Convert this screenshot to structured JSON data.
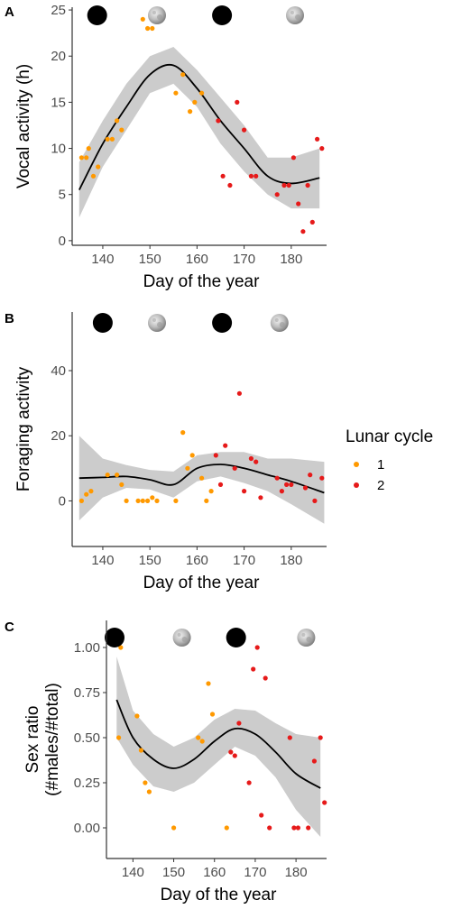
{
  "colors": {
    "cycle1": "#ff9900",
    "cycle2": "#e61a1a",
    "ribbon": "#cccccc",
    "fit": "#000000",
    "axis": "#333333"
  },
  "legend": {
    "title": "Lunar cycle",
    "items": [
      {
        "label": "1",
        "color": "#ff9900"
      },
      {
        "label": "2",
        "color": "#e61a1a"
      }
    ]
  },
  "chart_data": [
    {
      "panel": "A",
      "type": "scatter",
      "xlabel": "Day of the year",
      "ylabel": "Vocal activity (h)",
      "xlim": [
        133.5,
        187.5
      ],
      "ylim": [
        -0.5,
        25.3
      ],
      "xticks": [
        140,
        150,
        160,
        170,
        180
      ],
      "yticks": [
        0,
        5,
        10,
        15,
        20,
        25
      ],
      "moons": [
        {
          "x": 138.8,
          "phase": "new"
        },
        {
          "x": 151.5,
          "phase": "full"
        },
        {
          "x": 165.3,
          "phase": "new"
        },
        {
          "x": 180.8,
          "phase": "full"
        }
      ],
      "series": [
        {
          "name": "1",
          "points": [
            [
              135.5,
              9
            ],
            [
              136.5,
              9
            ],
            [
              137,
              10
            ],
            [
              138,
              7
            ],
            [
              139,
              8
            ],
            [
              141,
              11
            ],
            [
              142,
              11
            ],
            [
              143,
              13
            ],
            [
              144,
              12
            ],
            [
              148.5,
              24
            ],
            [
              149.5,
              23
            ],
            [
              150.5,
              23
            ],
            [
              155.5,
              16
            ],
            [
              157,
              18
            ],
            [
              158.5,
              14
            ],
            [
              159.5,
              15
            ],
            [
              161,
              16
            ]
          ]
        },
        {
          "name": "2",
          "points": [
            [
              164.5,
              13
            ],
            [
              165.5,
              7
            ],
            [
              167,
              6
            ],
            [
              168.5,
              15
            ],
            [
              170,
              12
            ],
            [
              171.5,
              7
            ],
            [
              172.5,
              7
            ],
            [
              177,
              5
            ],
            [
              178.5,
              6
            ],
            [
              179.5,
              6
            ],
            [
              180.5,
              9
            ],
            [
              181.5,
              4
            ],
            [
              182.5,
              1
            ],
            [
              183.5,
              6
            ],
            [
              184.5,
              2
            ],
            [
              185.5,
              11
            ],
            [
              186.5,
              10
            ]
          ]
        }
      ],
      "fit": {
        "x": [
          135,
          140,
          145,
          150,
          155,
          160,
          165,
          170,
          175,
          180,
          186
        ],
        "y": [
          5.5,
          10.5,
          14.5,
          18,
          19,
          16.5,
          13,
          10,
          7,
          6.2,
          6.8
        ],
        "lower": [
          2.5,
          8,
          12,
          16,
          17,
          14.5,
          10.5,
          7.5,
          5,
          3.5,
          3.5
        ],
        "upper": [
          8.5,
          13,
          17,
          20,
          21,
          18.5,
          15.5,
          12.5,
          9,
          9,
          10
        ]
      }
    },
    {
      "panel": "B",
      "type": "scatter",
      "xlabel": "Day of the year",
      "ylabel": "Foraging activity",
      "xlim": [
        133.5,
        187.5
      ],
      "ylim": [
        -14,
        58
      ],
      "xticks": [
        140,
        150,
        160,
        170,
        180
      ],
      "yticks": [
        0,
        20,
        40
      ],
      "moons": [
        {
          "x": 140,
          "phase": "new"
        },
        {
          "x": 151.5,
          "phase": "full"
        },
        {
          "x": 165.3,
          "phase": "new"
        },
        {
          "x": 177.5,
          "phase": "full"
        }
      ],
      "series": [
        {
          "name": "1",
          "points": [
            [
              141.3,
              54
            ],
            [
              135.5,
              0
            ],
            [
              136.5,
              2
            ],
            [
              137.5,
              3
            ],
            [
              141,
              8
            ],
            [
              143,
              8
            ],
            [
              144,
              5
            ],
            [
              145,
              0
            ],
            [
              147.5,
              0
            ],
            [
              148.5,
              0
            ],
            [
              149.5,
              0
            ],
            [
              150.5,
              1
            ],
            [
              151.5,
              0
            ],
            [
              155.5,
              0
            ],
            [
              157,
              21
            ],
            [
              158,
              10
            ],
            [
              159,
              14
            ],
            [
              161,
              7
            ],
            [
              162,
              0
            ],
            [
              163,
              3
            ]
          ]
        },
        {
          "name": "2",
          "points": [
            [
              164,
              14
            ],
            [
              165,
              5
            ],
            [
              166,
              17
            ],
            [
              168,
              10
            ],
            [
              169,
              33
            ],
            [
              170,
              3
            ],
            [
              171.5,
              13
            ],
            [
              172.5,
              12
            ],
            [
              173.5,
              1
            ],
            [
              177,
              7
            ],
            [
              178,
              3
            ],
            [
              179,
              5
            ],
            [
              180,
              5
            ],
            [
              183,
              4
            ],
            [
              184,
              8
            ],
            [
              185,
              0
            ],
            [
              186.5,
              7
            ]
          ]
        }
      ],
      "fit": {
        "x": [
          135,
          140,
          145,
          150,
          155,
          160,
          165,
          170,
          175,
          180,
          187
        ],
        "y": [
          7,
          7.2,
          7.5,
          6.5,
          5,
          10,
          11.2,
          10,
          8,
          6,
          2.5
        ],
        "lower": [
          -6,
          1,
          4,
          3.5,
          1,
          6,
          7.5,
          5.5,
          3,
          -1,
          -7
        ],
        "upper": [
          20,
          13,
          11,
          9.5,
          9,
          14,
          15,
          15,
          13,
          13,
          12
        ]
      }
    },
    {
      "panel": "C",
      "type": "scatter",
      "xlabel": "Day of the year",
      "ylabel": "Sex ratio\n(#males/#total)",
      "ylabel_lines": [
        "Sex ratio",
        "(#males/#total)"
      ],
      "xlim": [
        133.5,
        187.5
      ],
      "ylim": [
        -0.17,
        1.15
      ],
      "xticks": [
        140,
        150,
        160,
        170,
        180
      ],
      "yticks": [
        0,
        0.25,
        0.5,
        0.75,
        1
      ],
      "ytick_labels": [
        "0.00",
        "0.25",
        "0.50",
        "0.75",
        "1.00"
      ],
      "moons": [
        {
          "x": 135.5,
          "phase": "new"
        },
        {
          "x": 152,
          "phase": "full"
        },
        {
          "x": 165.3,
          "phase": "new"
        },
        {
          "x": 182.5,
          "phase": "full"
        }
      ],
      "series": [
        {
          "name": "1",
          "points": [
            [
              136.5,
              0.5
            ],
            [
              137,
              1.0
            ],
            [
              141,
              0.62
            ],
            [
              142,
              0.43
            ],
            [
              143,
              0.25
            ],
            [
              144,
              0.2
            ],
            [
              150,
              0
            ],
            [
              156,
              0.5
            ],
            [
              157,
              0.48
            ],
            [
              158.5,
              0.8
            ],
            [
              159.5,
              0.63
            ],
            [
              163,
              0
            ]
          ]
        },
        {
          "name": "2",
          "points": [
            [
              164,
              0.42
            ],
            [
              165,
              0.4
            ],
            [
              166,
              0.58
            ],
            [
              168.5,
              0.25
            ],
            [
              169.5,
              0.88
            ],
            [
              170.5,
              1.0
            ],
            [
              171.5,
              0.07
            ],
            [
              172.5,
              0.83
            ],
            [
              173.5,
              0
            ],
            [
              178.5,
              0.5
            ],
            [
              179.5,
              0
            ],
            [
              180.5,
              0
            ],
            [
              183,
              0
            ],
            [
              184.5,
              0.37
            ],
            [
              186,
              0.5
            ],
            [
              187,
              0.14
            ]
          ]
        }
      ],
      "fit": {
        "x": [
          136,
          140,
          145,
          150,
          155,
          160,
          165,
          170,
          175,
          180,
          186
        ],
        "y": [
          0.71,
          0.5,
          0.38,
          0.33,
          0.38,
          0.48,
          0.55,
          0.52,
          0.42,
          0.3,
          0.22
        ],
        "lower": [
          0.5,
          0.35,
          0.23,
          0.2,
          0.25,
          0.35,
          0.45,
          0.4,
          0.28,
          0.1,
          -0.05
        ],
        "upper": [
          0.95,
          0.65,
          0.52,
          0.45,
          0.5,
          0.6,
          0.66,
          0.65,
          0.58,
          0.52,
          0.5
        ]
      }
    }
  ]
}
